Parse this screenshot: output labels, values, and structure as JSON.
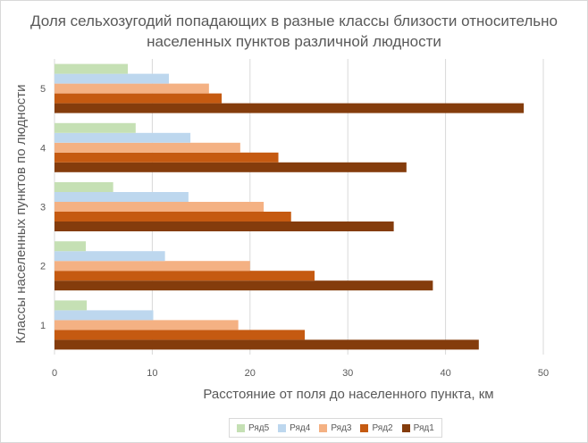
{
  "chart_data": {
    "type": "bar",
    "orientation": "horizontal",
    "title": "Доля сельхозугодий попадающих в разные классы близости относительно населенных пунктов различной людности",
    "title_lines": [
      "Доля сельхозугодий попадающих в разные классы близости относительно",
      "населенных пунктов различной людности"
    ],
    "xlabel": "Расстояние от поля до населенного пункта, км",
    "ylabel": "Классы населенных пунктов по людности",
    "categories": [
      "1",
      "2",
      "3",
      "4",
      "5"
    ],
    "xlim": [
      0,
      50
    ],
    "xticks": [
      "0",
      "10",
      "20",
      "30",
      "40",
      "50"
    ],
    "grid": true,
    "legend_position": "bottom",
    "series": [
      {
        "name": "Ряд1",
        "color": "#843C0C",
        "values": [
          43.4,
          38.7,
          34.7,
          36.0,
          48.0
        ]
      },
      {
        "name": "Ряд2",
        "color": "#C55A11",
        "values": [
          25.6,
          26.6,
          24.2,
          22.9,
          17.1
        ]
      },
      {
        "name": "Ряд3",
        "color": "#F4B183",
        "values": [
          18.8,
          20.0,
          21.4,
          19.0,
          15.8
        ]
      },
      {
        "name": "Ряд4",
        "color": "#BDD7EE",
        "values": [
          10.1,
          11.3,
          13.7,
          13.9,
          11.7
        ]
      },
      {
        "name": "Ряд5",
        "color": "#C5E0B4",
        "values": [
          3.3,
          3.2,
          6.0,
          8.3,
          7.5
        ]
      }
    ],
    "legend_order": [
      "Ряд5",
      "Ряд4",
      "Ряд3",
      "Ряд2",
      "Ряд1"
    ]
  }
}
